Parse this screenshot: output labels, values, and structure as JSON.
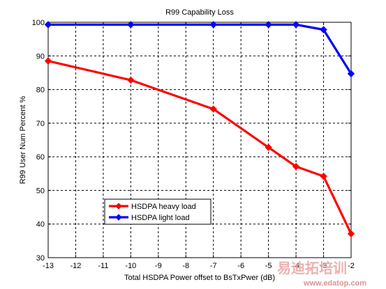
{
  "chart_data": {
    "type": "line",
    "title": "R99 Capability Loss",
    "xlabel": "Total HSDPA Power offset to BsTxPwer (dB)",
    "ylabel": "R99 User Num Percent %",
    "xlim": [
      -13,
      -2
    ],
    "ylim": [
      30,
      100
    ],
    "xticks": [
      -13,
      -12,
      -11,
      -10,
      -9,
      -8,
      -7,
      -6,
      -5,
      -4,
      -3,
      -2
    ],
    "yticks": [
      30,
      40,
      50,
      60,
      70,
      80,
      90,
      100
    ],
    "grid": true,
    "legend_position": "lower-left",
    "series": [
      {
        "name": "HSDPA heavy load",
        "color": "#ff0000",
        "x": [
          -13,
          -10,
          -7,
          -5,
          -4,
          -3,
          -2
        ],
        "y": [
          88.5,
          82.8,
          74.2,
          62.8,
          57.1,
          54.2,
          37.1
        ]
      },
      {
        "name": "HSDPA light load",
        "color": "#0000ff",
        "x": [
          -13,
          -10,
          -7,
          -5,
          -4,
          -3,
          -2
        ],
        "y": [
          99.3,
          99.3,
          99.3,
          99.3,
          99.3,
          97.8,
          84.7
        ]
      }
    ]
  },
  "watermark": {
    "main": "易迪拓培训",
    "url": "www.edatop.com"
  }
}
